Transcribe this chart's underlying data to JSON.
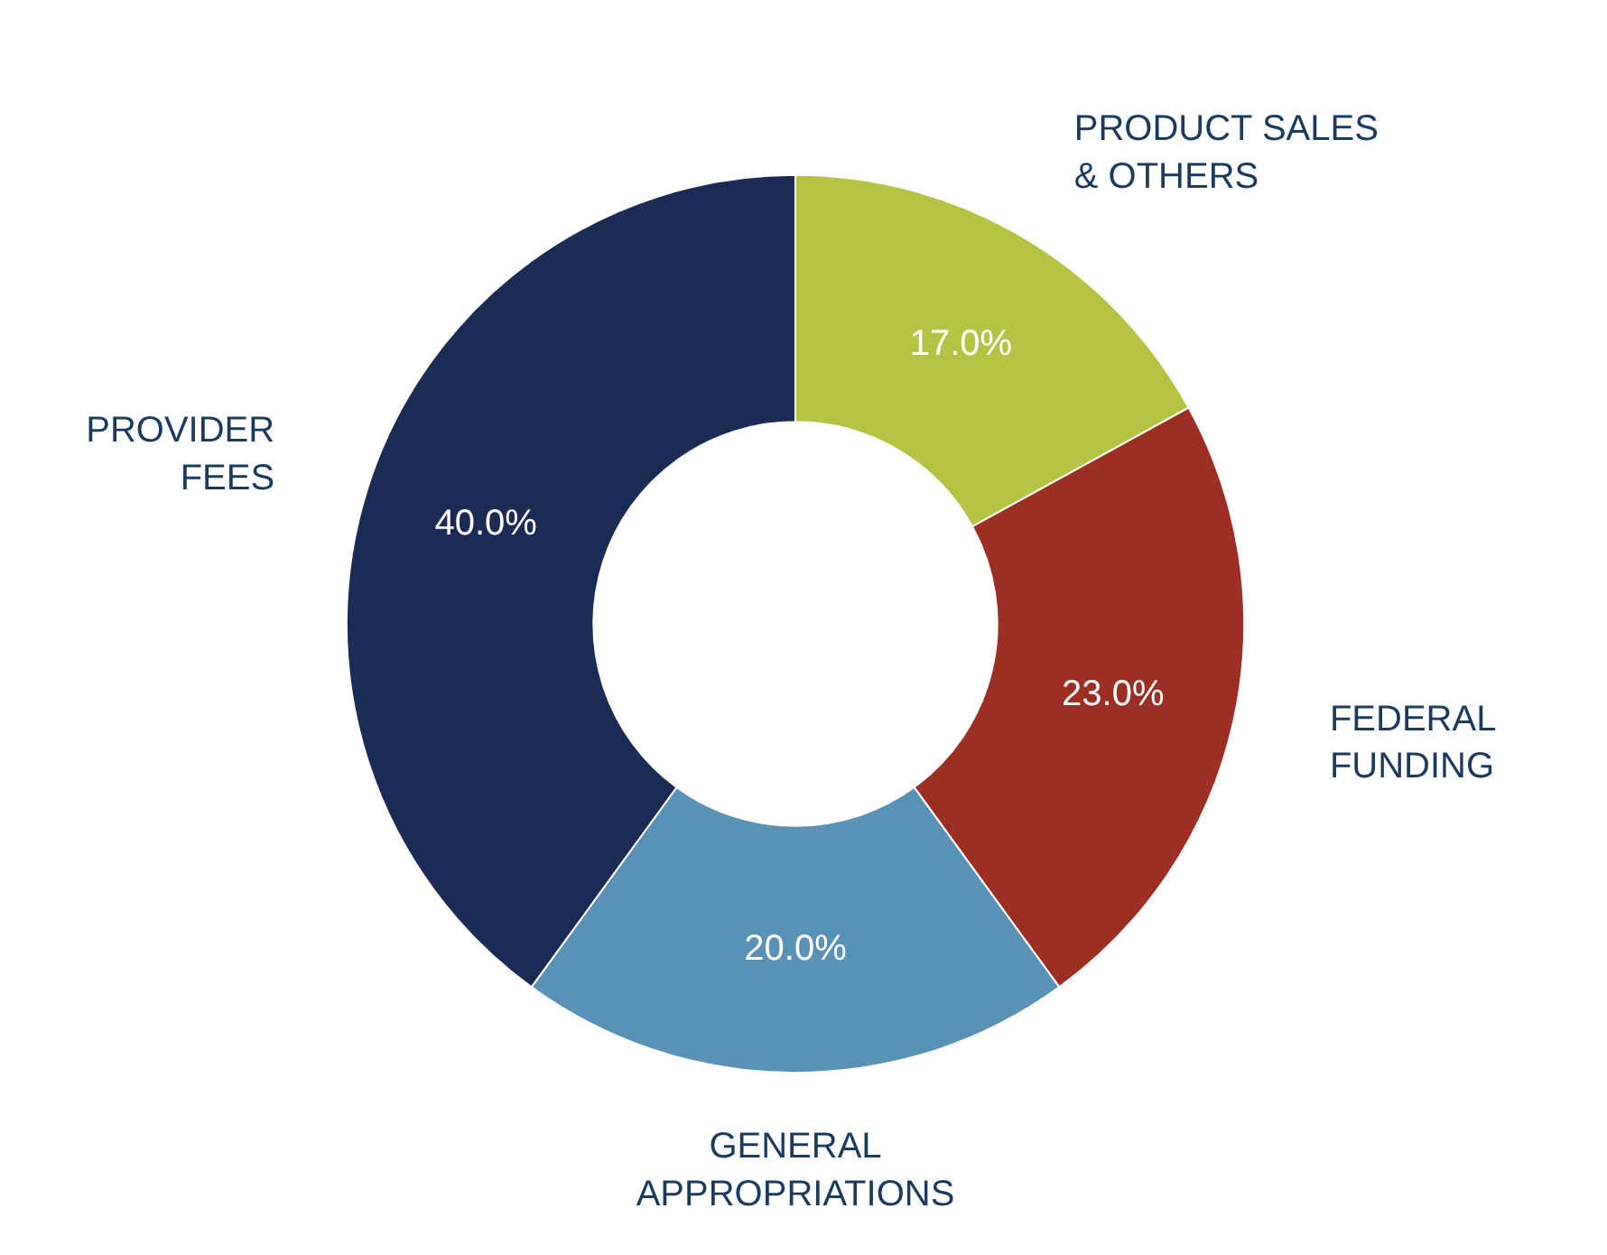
{
  "chart_data": {
    "type": "donut",
    "categories": [
      "PRODUCT SALES\n& OTHERS",
      "FEDERAL\nFUNDING",
      "GENERAL\nAPPROPRIATIONS",
      "PROVIDER\nFEES"
    ],
    "values": [
      17,
      23,
      20,
      40
    ],
    "colors": [
      "#b5c345",
      "#9b2f24",
      "#5a92b6",
      "#1b2b55"
    ],
    "value_labels": [
      "17.0%",
      "23.0%",
      "20.0%",
      "40.0%"
    ]
  }
}
